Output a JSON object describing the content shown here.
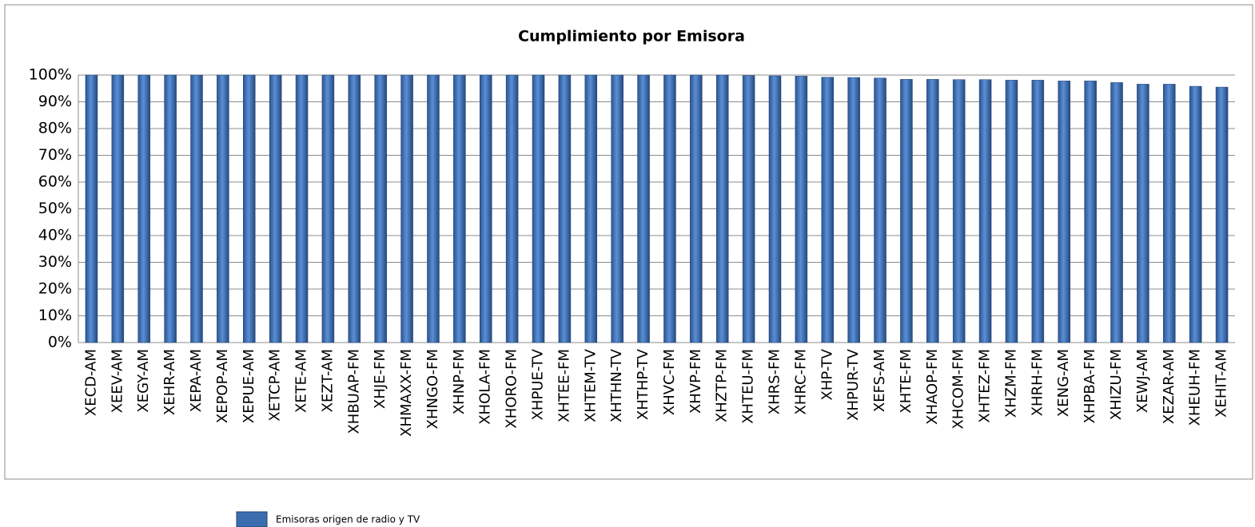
{
  "chart_data": {
    "type": "bar",
    "title": "Cumplimiento por Emisora",
    "categories": [
      "XECD-AM",
      "XEEV-AM",
      "XEGY-AM",
      "XEHR-AM",
      "XEPA-AM",
      "XEPOP-AM",
      "XEPUE-AM",
      "XETCP-AM",
      "XETE-AM",
      "XEZT-AM",
      "XHBUAP-FM",
      "XHJE-FM",
      "XHMAXX-FM",
      "XHNGO-FM",
      "XHNP-FM",
      "XHOLA-FM",
      "XHORO-FM",
      "XHPUE-TV",
      "XHTEE-FM",
      "XHTEM-TV",
      "XHTHN-TV",
      "XHTHP-TV",
      "XHVC-FM",
      "XHVP-FM",
      "XHZTP-FM",
      "XHTEU-FM",
      "XHRS-FM",
      "XHRC-FM",
      "XHP-TV",
      "XHPUR-TV",
      "XEFS-AM",
      "XHTE-FM",
      "XHAOP-FM",
      "XHCOM-FM",
      "XHTEZ-FM",
      "XHZM-FM",
      "XHRH-FM",
      "XENG-AM",
      "XHPBA-FM",
      "XHIZU-FM",
      "XEWJ-AM",
      "XEZAR-AM",
      "XHEUH-FM",
      "XEHIT-AM"
    ],
    "series": [
      {
        "name": "Emisoras origen de radio y TV",
        "color": "#3a6db0",
        "values": [
          100,
          100,
          100,
          100,
          100,
          100,
          100,
          100,
          100,
          100,
          100,
          100,
          100,
          100,
          100,
          100,
          100,
          100,
          100,
          100,
          100,
          100,
          100,
          100,
          100,
          99.8,
          99.7,
          99.6,
          99.2,
          99.1,
          98.9,
          98.4,
          98.4,
          98.3,
          98.3,
          98.1,
          98.1,
          97.8,
          97.8,
          97.2,
          96.6,
          96.6,
          95.8,
          95.5
        ]
      }
    ],
    "ylim": [
      0,
      100
    ],
    "yticks": [
      {
        "value": 0,
        "label": "0%"
      },
      {
        "value": 10,
        "label": "10%"
      },
      {
        "value": 20,
        "label": "20%"
      },
      {
        "value": 30,
        "label": "30%"
      },
      {
        "value": 40,
        "label": "40%"
      },
      {
        "value": 50,
        "label": "50%"
      },
      {
        "value": 60,
        "label": "60%"
      },
      {
        "value": 70,
        "label": "70%"
      },
      {
        "value": 80,
        "label": "80%"
      },
      {
        "value": 90,
        "label": "90%"
      },
      {
        "value": 100,
        "label": "100%"
      }
    ],
    "grid": true,
    "legend": "bottom"
  }
}
